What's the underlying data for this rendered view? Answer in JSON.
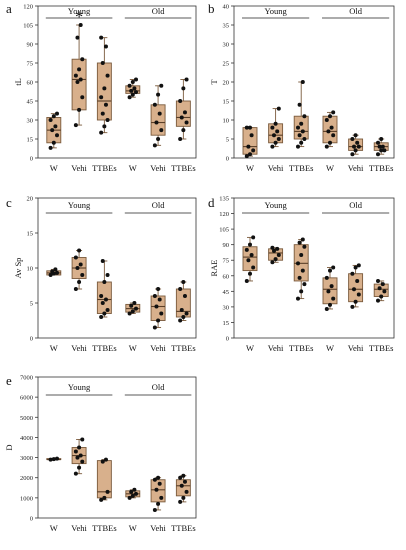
{
  "chart_data": [
    {
      "type": "box",
      "panel_letter": "a",
      "ylabel": "tL",
      "ylim": [
        0,
        120
      ],
      "yticks": [
        0,
        15,
        30,
        45,
        60,
        75,
        90,
        105,
        120
      ],
      "categories": [
        "W",
        "Vehi",
        "TTBEs",
        "W",
        "Vehi",
        "TTBEs"
      ],
      "groups": [
        {
          "label": "Young",
          "categories": [
            0,
            2
          ]
        },
        {
          "label": "Old",
          "categories": [
            3,
            5
          ]
        }
      ],
      "annotations": [
        {
          "text": "*",
          "category": 1
        }
      ],
      "fill_color": "#d8b08c",
      "edge_color": "#7a5a3c",
      "boxes": [
        {
          "min": 8,
          "q1": 12,
          "median": 22,
          "q3": 32,
          "max": 35,
          "points": [
            8,
            12,
            18,
            22,
            25,
            30,
            33,
            35
          ]
        },
        {
          "min": 26,
          "q1": 38,
          "median": 62,
          "q3": 78,
          "max": 105,
          "points": [
            26,
            38,
            48,
            60,
            62,
            65,
            70,
            78,
            95,
            105
          ]
        },
        {
          "min": 20,
          "q1": 30,
          "median": 45,
          "q3": 75,
          "max": 95,
          "points": [
            20,
            25,
            30,
            35,
            42,
            48,
            55,
            65,
            75,
            88,
            95
          ]
        },
        {
          "min": 48,
          "q1": 51,
          "median": 53,
          "q3": 57,
          "max": 62,
          "points": [
            48,
            50,
            52,
            53,
            55,
            57,
            60,
            62
          ]
        },
        {
          "min": 10,
          "q1": 18,
          "median": 28,
          "q3": 42,
          "max": 57,
          "points": [
            10,
            15,
            22,
            28,
            35,
            42,
            50,
            57
          ]
        },
        {
          "min": 15,
          "q1": 25,
          "median": 32,
          "q3": 45,
          "max": 62,
          "points": [
            15,
            22,
            28,
            32,
            36,
            45,
            55,
            62
          ]
        }
      ]
    },
    {
      "type": "box",
      "panel_letter": "b",
      "ylabel": "T",
      "ylim": [
        0,
        40
      ],
      "yticks": [
        0,
        5,
        10,
        15,
        20,
        25,
        30,
        35,
        40
      ],
      "categories": [
        "W",
        "Vehi",
        "TTBEs",
        "W",
        "Vehi",
        "TTBEs"
      ],
      "groups": [
        {
          "label": "Young",
          "categories": [
            0,
            2
          ]
        },
        {
          "label": "Old",
          "categories": [
            3,
            5
          ]
        }
      ],
      "fill_color": "#d8b08c",
      "edge_color": "#7a5a3c",
      "boxes": [
        {
          "min": 0.5,
          "q1": 1,
          "median": 3,
          "q3": 8,
          "max": 8,
          "points": [
            0.5,
            1,
            2,
            3,
            6,
            8,
            8
          ]
        },
        {
          "min": 3,
          "q1": 4,
          "median": 6,
          "q3": 9,
          "max": 13,
          "points": [
            3,
            4,
            5,
            6,
            7,
            8,
            9,
            13
          ]
        },
        {
          "min": 3,
          "q1": 5,
          "median": 7,
          "q3": 11,
          "max": 20,
          "points": [
            3,
            4,
            5,
            6,
            7,
            8,
            9,
            11,
            14,
            20
          ]
        },
        {
          "min": 3,
          "q1": 4,
          "median": 7,
          "q3": 11,
          "max": 12,
          "points": [
            3,
            4,
            6,
            7,
            8,
            10,
            11,
            12
          ]
        },
        {
          "min": 1,
          "q1": 2,
          "median": 3,
          "q3": 5,
          "max": 6,
          "points": [
            1,
            2,
            3,
            3,
            4,
            5,
            6
          ]
        },
        {
          "min": 1,
          "q1": 2,
          "median": 3,
          "q3": 4,
          "max": 5,
          "points": [
            1,
            2,
            2,
            3,
            3,
            4,
            5
          ]
        }
      ]
    },
    {
      "type": "box",
      "panel_letter": "c",
      "ylabel": "Av Sp",
      "ylim": [
        0,
        20
      ],
      "yticks": [
        0,
        5,
        10,
        15,
        20
      ],
      "categories": [
        "W",
        "Vehi",
        "TTBEs",
        "W",
        "Vehi",
        "TTBEs"
      ],
      "groups": [
        {
          "label": "Young",
          "categories": [
            0,
            2
          ]
        },
        {
          "label": "Old",
          "categories": [
            3,
            5
          ]
        }
      ],
      "fill_color": "#d8b08c",
      "edge_color": "#7a5a3c",
      "boxes": [
        {
          "min": 9,
          "q1": 9,
          "median": 9.3,
          "q3": 9.6,
          "max": 9.8,
          "points": [
            9,
            9.2,
            9.3,
            9.5,
            9.8
          ]
        },
        {
          "min": 7,
          "q1": 8.5,
          "median": 10,
          "q3": 11.5,
          "max": 12.5,
          "points": [
            7,
            8,
            9,
            10,
            10.5,
            11.5,
            12.5
          ]
        },
        {
          "min": 3,
          "q1": 3.5,
          "median": 5.5,
          "q3": 8,
          "max": 11,
          "points": [
            3,
            3.5,
            4,
            5,
            5.5,
            6,
            8,
            9,
            11
          ]
        },
        {
          "min": 3.5,
          "q1": 3.7,
          "median": 4.2,
          "q3": 4.8,
          "max": 5,
          "points": [
            3.5,
            3.8,
            4.2,
            4.6,
            5
          ]
        },
        {
          "min": 1.5,
          "q1": 2.5,
          "median": 4.5,
          "q3": 6,
          "max": 7,
          "points": [
            1.5,
            2.5,
            3.5,
            4.5,
            5.5,
            6,
            7
          ]
        },
        {
          "min": 2.5,
          "q1": 3,
          "median": 3.8,
          "q3": 7,
          "max": 8,
          "points": [
            2.5,
            3,
            3.5,
            4,
            6,
            7,
            8
          ]
        }
      ]
    },
    {
      "type": "box",
      "panel_letter": "d",
      "ylabel": "RAE",
      "ylim": [
        0,
        135
      ],
      "yticks": [
        0,
        15,
        30,
        45,
        60,
        75,
        90,
        105,
        120,
        135
      ],
      "categories": [
        "W",
        "Vehi",
        "TTBEs",
        "W",
        "Vehi",
        "TTBEs"
      ],
      "groups": [
        {
          "label": "Young",
          "categories": [
            0,
            2
          ]
        },
        {
          "label": "Old",
          "categories": [
            3,
            5
          ]
        }
      ],
      "fill_color": "#d8b08c",
      "edge_color": "#7a5a3c",
      "boxes": [
        {
          "min": 55,
          "q1": 65,
          "median": 78,
          "q3": 88,
          "max": 97,
          "points": [
            55,
            62,
            68,
            75,
            80,
            85,
            90,
            97
          ]
        },
        {
          "min": 73,
          "q1": 75,
          "median": 82,
          "q3": 86,
          "max": 87,
          "points": [
            73,
            76,
            80,
            84,
            86,
            87
          ]
        },
        {
          "min": 38,
          "q1": 55,
          "median": 72,
          "q3": 90,
          "max": 95,
          "points": [
            38,
            45,
            52,
            58,
            65,
            72,
            80,
            88,
            92,
            95
          ]
        },
        {
          "min": 28,
          "q1": 33,
          "median": 47,
          "q3": 58,
          "max": 68,
          "points": [
            28,
            32,
            38,
            45,
            50,
            58,
            65,
            68
          ]
        },
        {
          "min": 30,
          "q1": 35,
          "median": 47,
          "q3": 62,
          "max": 70,
          "points": [
            30,
            35,
            42,
            47,
            55,
            62,
            68,
            70
          ]
        },
        {
          "min": 36,
          "q1": 40,
          "median": 47,
          "q3": 52,
          "max": 55,
          "points": [
            36,
            40,
            45,
            48,
            52,
            55
          ]
        }
      ]
    },
    {
      "type": "box",
      "panel_letter": "e",
      "ylabel": "D",
      "ylim": [
        0,
        7000
      ],
      "yticks": [
        0,
        1000,
        2000,
        3000,
        4000,
        5000,
        6000,
        7000
      ],
      "categories": [
        "W",
        "Vehi",
        "TTBEs",
        "W",
        "Vehi",
        "TTBEs"
      ],
      "groups": [
        {
          "label": "Young",
          "categories": [
            0,
            2
          ]
        },
        {
          "label": "Old",
          "categories": [
            3,
            5
          ]
        }
      ],
      "fill_color": "#d8b08c",
      "edge_color": "#7a5a3c",
      "boxes": [
        {
          "min": 2900,
          "q1": 2900,
          "median": 2900,
          "q3": 2950,
          "max": 2950,
          "points": [
            2900,
            2920,
            2950
          ]
        },
        {
          "min": 2200,
          "q1": 2700,
          "median": 3100,
          "q3": 3500,
          "max": 3900,
          "points": [
            2200,
            2500,
            2800,
            3000,
            3100,
            3300,
            3500,
            3900
          ]
        },
        {
          "min": 900,
          "q1": 1000,
          "median": 1300,
          "q3": 2850,
          "max": 2900,
          "points": [
            900,
            1000,
            1300,
            2800,
            2900
          ]
        },
        {
          "min": 1000,
          "q1": 1050,
          "median": 1200,
          "q3": 1350,
          "max": 1400,
          "points": [
            1000,
            1100,
            1200,
            1300,
            1400
          ]
        },
        {
          "min": 400,
          "q1": 800,
          "median": 1400,
          "q3": 1900,
          "max": 2000,
          "points": [
            400,
            700,
            1000,
            1400,
            1700,
            1900,
            2000
          ]
        },
        {
          "min": 800,
          "q1": 1100,
          "median": 1600,
          "q3": 1900,
          "max": 2100,
          "points": [
            800,
            1000,
            1300,
            1600,
            1800,
            2000,
            2100
          ]
        }
      ]
    }
  ]
}
